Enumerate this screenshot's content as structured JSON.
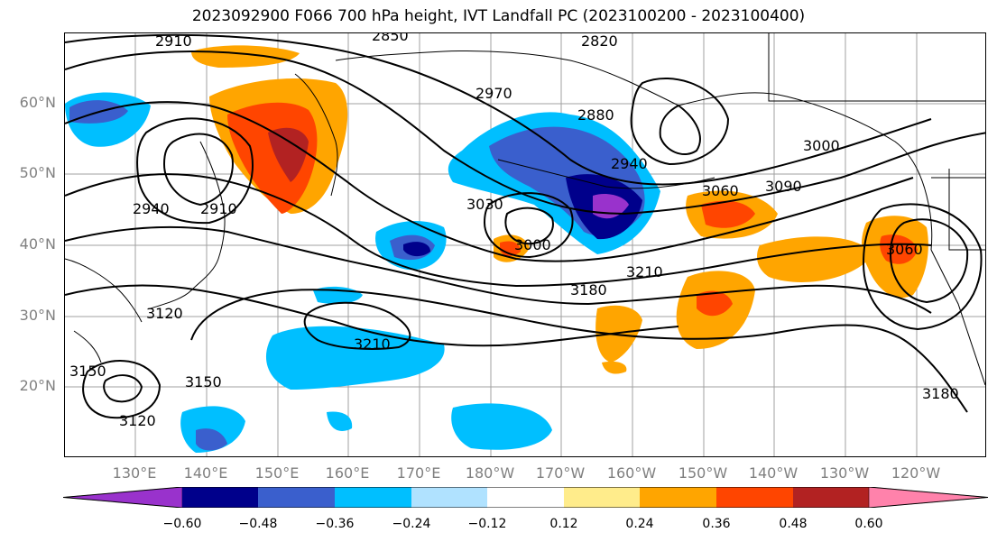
{
  "title": "2023092900 F066 700 hPa height, IVT Landfall PC (2023100200 - 2023100400)",
  "map": {
    "lat_labels": [
      "60°N",
      "50°N",
      "40°N",
      "30°N",
      "20°N"
    ],
    "lon_labels": [
      "130°E",
      "140°E",
      "150°E",
      "160°E",
      "170°E",
      "180°W",
      "170°W",
      "160°W",
      "150°W",
      "140°W",
      "130°W",
      "120°W"
    ],
    "contour_labels": [
      "2910",
      "2850",
      "2820",
      "2970",
      "2880",
      "2940",
      "3000",
      "3030",
      "3060",
      "3090",
      "2940",
      "2910",
      "3000",
      "3180",
      "3210",
      "3060",
      "3120",
      "3150",
      "3210",
      "3150",
      "3120",
      "3180"
    ]
  },
  "colorbar": {
    "colors": [
      "#9932cc",
      "#00008b",
      "#3a5fcd",
      "#00bfff",
      "#b0e2ff",
      "#ffffff",
      "#ffec8b",
      "#ffa500",
      "#ff4500",
      "#b22222",
      "#ff82ab"
    ],
    "ticks": [
      "−0.60",
      "−0.48",
      "−0.36",
      "−0.24",
      "−0.12",
      "0.12",
      "0.24",
      "0.36",
      "0.48",
      "0.60"
    ]
  }
}
